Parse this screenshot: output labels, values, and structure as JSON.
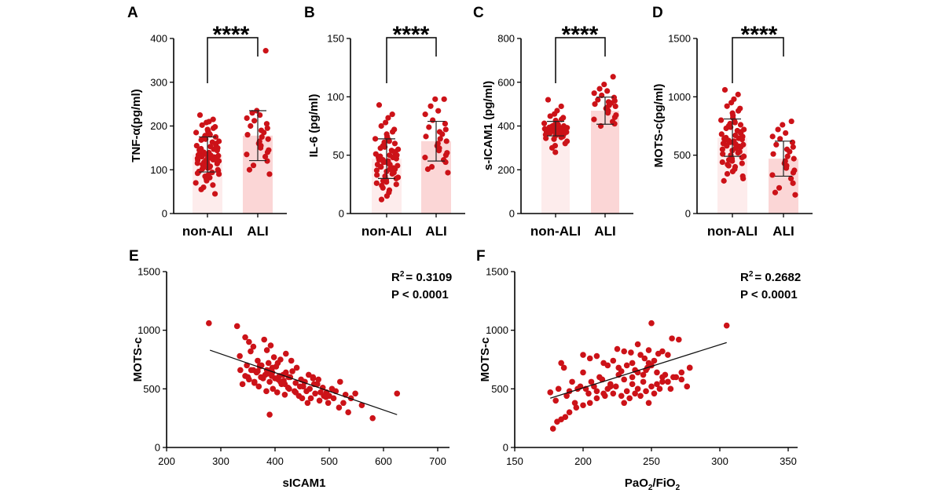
{
  "colors": {
    "point": "#cc1218",
    "bar_non_ali": "#fdecec",
    "bar_ali": "#fbd6d6",
    "axis": "#000000"
  },
  "panels": {
    "A": {
      "letter": "A",
      "ylabel": "TNF-α(pg/ml)",
      "sig": "****"
    },
    "B": {
      "letter": "B",
      "ylabel": "IL-6 (pg/ml)",
      "sig": "****"
    },
    "C": {
      "letter": "C",
      "ylabel": "s-ICAM1 (pg/ml)",
      "sig": "****"
    },
    "D": {
      "letter": "D",
      "ylabel": "MOTS-c(pg/ml)",
      "sig": "****"
    },
    "E": {
      "letter": "E",
      "ylabel": "MOTS-c",
      "xlabel": "sICAM1",
      "r2_label": "R",
      "r2_sup": "2",
      "r2_value": "= 0.3109",
      "p_text": "P < 0.0001"
    },
    "F": {
      "letter": "F",
      "ylabel": "MOTS-c",
      "xlabel_main": "PaO",
      "xlabel_sub1": "2",
      "xlabel_mid": "/FiO",
      "xlabel_sub2": "2",
      "r2_label": "R",
      "r2_sup": "2",
      "r2_value": "= 0.2682",
      "p_text": "P < 0.0001"
    }
  },
  "chart_data": [
    {
      "panel": "A",
      "type": "bar",
      "categories": [
        "non-ALI",
        "ALI"
      ],
      "ylabel": "TNF-α(pg/ml)",
      "ylim": [
        0,
        400
      ],
      "yticks": [
        0,
        100,
        200,
        300,
        400
      ],
      "significance": "****",
      "series": [
        {
          "category": "non-ALI",
          "mean": 135,
          "sd": 40,
          "points": [
            225,
            215,
            210,
            208,
            202,
            198,
            195,
            192,
            190,
            188,
            185,
            182,
            180,
            178,
            175,
            172,
            170,
            168,
            165,
            163,
            160,
            158,
            155,
            153,
            150,
            148,
            147,
            145,
            144,
            142,
            140,
            139,
            138,
            136,
            135,
            134,
            133,
            132,
            131,
            130,
            129,
            128,
            127,
            126,
            125,
            124,
            123,
            122,
            121,
            120,
            119,
            118,
            117,
            116,
            115,
            114,
            112,
            110,
            108,
            106,
            104,
            102,
            100,
            98,
            96,
            94,
            92,
            90,
            88,
            85,
            82,
            80,
            75,
            70,
            65,
            60,
            55,
            45
          ]
        },
        {
          "category": "ALI",
          "mean": 178,
          "sd": 57,
          "points": [
            372,
            235,
            230,
            225,
            218,
            212,
            205,
            200,
            195,
            190,
            185,
            180,
            175,
            170,
            165,
            160,
            155,
            150,
            145,
            140,
            135,
            130,
            120,
            110,
            100,
            90
          ]
        }
      ]
    },
    {
      "panel": "B",
      "type": "bar",
      "categories": [
        "non-ALI",
        "ALI"
      ],
      "ylabel": "IL-6 (pg/ml)",
      "ylim": [
        0,
        150
      ],
      "yticks": [
        0,
        50,
        100,
        150
      ],
      "significance": "****",
      "series": [
        {
          "category": "non-ALI",
          "mean": 47,
          "sd": 17,
          "points": [
            93,
            85,
            82,
            78,
            75,
            72,
            70,
            68,
            66,
            65,
            64,
            63,
            62,
            61,
            60,
            58,
            57,
            56,
            55,
            54,
            53,
            52,
            51,
            50,
            50,
            49,
            48,
            48,
            47,
            46,
            46,
            45,
            44,
            44,
            43,
            42,
            42,
            41,
            40,
            40,
            39,
            38,
            38,
            37,
            36,
            35,
            34,
            33,
            32,
            31,
            30,
            29,
            28,
            27,
            26,
            25,
            24,
            22,
            20,
            18,
            15,
            12
          ]
        },
        {
          "category": "ALI",
          "mean": 62,
          "sd": 17,
          "points": [
            98,
            98,
            92,
            88,
            85,
            80,
            77,
            74,
            72,
            70,
            68,
            66,
            64,
            62,
            60,
            58,
            56,
            54,
            52,
            50,
            48,
            46,
            44,
            40,
            38,
            35
          ]
        }
      ]
    },
    {
      "panel": "C",
      "type": "bar",
      "categories": [
        "non-ALI",
        "ALI"
      ],
      "ylabel": "s-ICAM1 (pg/ml)",
      "ylim": [
        0,
        800
      ],
      "yticks": [
        0,
        200,
        400,
        600,
        800
      ],
      "significance": "****",
      "series": [
        {
          "category": "non-ALI",
          "mean": 388,
          "sd": 33,
          "points": [
            520,
            490,
            470,
            455,
            445,
            438,
            430,
            425,
            420,
            415,
            412,
            408,
            405,
            402,
            400,
            398,
            396,
            394,
            392,
            390,
            389,
            388,
            387,
            386,
            385,
            384,
            383,
            382,
            381,
            380,
            379,
            378,
            377,
            376,
            375,
            374,
            373,
            372,
            370,
            368,
            366,
            364,
            362,
            360,
            356,
            352,
            348,
            344,
            340,
            330,
            320,
            310,
            300,
            280
          ]
        },
        {
          "category": "ALI",
          "mean": 470,
          "sd": 62,
          "points": [
            625,
            590,
            570,
            560,
            550,
            540,
            530,
            520,
            515,
            510,
            505,
            500,
            495,
            490,
            485,
            480,
            470,
            460,
            450,
            440,
            430,
            420,
            410,
            400
          ]
        }
      ]
    },
    {
      "panel": "D",
      "type": "bar",
      "categories": [
        "non-ALI",
        "ALI"
      ],
      "ylabel": "MOTS-c(pg/ml)",
      "ylim": [
        0,
        1500
      ],
      "yticks": [
        0,
        500,
        1000,
        1500
      ],
      "significance": "****",
      "series": [
        {
          "category": "non-ALI",
          "mean": 650,
          "sd": 160,
          "points": [
            1060,
            1020,
            980,
            950,
            920,
            900,
            880,
            860,
            840,
            820,
            800,
            790,
            780,
            770,
            760,
            750,
            740,
            730,
            720,
            710,
            700,
            690,
            680,
            670,
            660,
            650,
            645,
            640,
            635,
            630,
            625,
            620,
            615,
            610,
            605,
            600,
            595,
            590,
            585,
            580,
            575,
            570,
            560,
            550,
            540,
            530,
            520,
            510,
            500,
            490,
            480,
            470,
            460,
            450,
            440,
            430,
            420,
            410,
            400,
            380,
            360,
            340,
            320,
            300,
            280
          ]
        },
        {
          "category": "ALI",
          "mean": 470,
          "sd": 150,
          "points": [
            790,
            760,
            720,
            690,
            660,
            640,
            610,
            590,
            570,
            550,
            530,
            510,
            490,
            470,
            450,
            430,
            410,
            390,
            370,
            350,
            330,
            300,
            260,
            220,
            180,
            160
          ]
        }
      ]
    },
    {
      "panel": "E",
      "type": "scatter",
      "xlabel": "sICAM1",
      "ylabel": "MOTS-c",
      "xlim": [
        200,
        750
      ],
      "ylim": [
        0,
        1500
      ],
      "xticks": [
        200,
        300,
        400,
        500,
        600,
        700
      ],
      "yticks": [
        0,
        500,
        1000,
        1500
      ],
      "r2": "R2 = 0.3109",
      "p": "P < 0.0001",
      "fit_line": {
        "x": [
          280,
          625
        ],
        "y": [
          830,
          280
        ]
      },
      "x": [
        278,
        330,
        345,
        352,
        360,
        335,
        380,
        392,
        355,
        368,
        375,
        410,
        420,
        385,
        398,
        405,
        430,
        440,
        360,
        372,
        388,
        395,
        402,
        415,
        425,
        432,
        448,
        455,
        462,
        470,
        478,
        488,
        495,
        505,
        512,
        520,
        530,
        540,
        548,
        560,
        580,
        625,
        340,
        350,
        362,
        370,
        378,
        384,
        390,
        396,
        404,
        412,
        418,
        424,
        436,
        444,
        452,
        458,
        466,
        474,
        482,
        490,
        498,
        508,
        518,
        526,
        535,
        345,
        352,
        366,
        374,
        386,
        392,
        400,
        408,
        416,
        428,
        438,
        446,
        454,
        464,
        472,
        484,
        494,
        500,
        480,
        470,
        420,
        410,
        395,
        385,
        372,
        362,
        336,
        348,
        356,
        368,
        382,
        394,
        406,
        418,
        426,
        438,
        450,
        460,
        390
      ],
      "y": [
        1060,
        1035,
        940,
        900,
        860,
        780,
        920,
        870,
        820,
        740,
        700,
        750,
        800,
        830,
        770,
        720,
        740,
        680,
        660,
        690,
        720,
        640,
        690,
        620,
        600,
        650,
        580,
        560,
        620,
        590,
        540,
        510,
        470,
        500,
        480,
        560,
        450,
        420,
        460,
        360,
        250,
        460,
        540,
        600,
        550,
        520,
        590,
        480,
        560,
        500,
        470,
        540,
        450,
        510,
        480,
        440,
        520,
        480,
        420,
        460,
        400,
        440,
        380,
        420,
        340,
        380,
        300,
        610,
        580,
        640,
        600,
        630,
        660,
        590,
        610,
        570,
        600,
        550,
        520,
        560,
        500,
        540,
        470,
        430,
        440,
        580,
        600,
        640,
        560,
        680,
        660,
        700,
        560,
        660,
        700,
        660,
        650,
        620,
        610,
        580,
        540,
        500,
        470,
        420,
        380,
        280
      ]
    },
    {
      "panel": "F",
      "type": "scatter",
      "xlabel": "PaO2/FiO2",
      "ylabel": "MOTS-c",
      "xlim": [
        150,
        375
      ],
      "ylim": [
        0,
        1500
      ],
      "xticks": [
        150,
        200,
        250,
        300,
        350
      ],
      "yticks": [
        0,
        500,
        1000,
        1500
      ],
      "r2": "R2 = 0.2682",
      "p": "P < 0.0001",
      "fit_line": {
        "x": [
          176,
          305
        ],
        "y": [
          420,
          895
        ]
      },
      "x": [
        305,
        250,
        265,
        270,
        240,
        248,
        255,
        258,
        262,
        225,
        230,
        235,
        242,
        245,
        252,
        200,
        205,
        210,
        215,
        218,
        222,
        226,
        228,
        232,
        236,
        238,
        244,
        247,
        254,
        258,
        262,
        266,
        272,
        278,
        176,
        178,
        180,
        182,
        184,
        186,
        188,
        190,
        192,
        194,
        196,
        198,
        200,
        202,
        204,
        206,
        208,
        210,
        212,
        214,
        216,
        218,
        220,
        222,
        224,
        226,
        228,
        230,
        232,
        234,
        236,
        238,
        240,
        242,
        244,
        246,
        248,
        250,
        252,
        254,
        256,
        258,
        260,
        262,
        264,
        268,
        272,
        276,
        278,
        250,
        248,
        246,
        240,
        236,
        230,
        220,
        215,
        210,
        205,
        200,
        195,
        190,
        187,
        184,
        181
      ],
      "y": [
        1040,
        1060,
        930,
        920,
        880,
        830,
        800,
        820,
        790,
        840,
        820,
        810,
        790,
        760,
        740,
        790,
        760,
        780,
        720,
        700,
        740,
        680,
        650,
        700,
        720,
        660,
        620,
        680,
        640,
        600,
        560,
        600,
        580,
        680,
        470,
        160,
        400,
        500,
        720,
        680,
        440,
        480,
        560,
        380,
        500,
        520,
        640,
        500,
        460,
        560,
        520,
        480,
        600,
        580,
        440,
        500,
        540,
        460,
        520,
        620,
        440,
        380,
        480,
        420,
        540,
        460,
        500,
        440,
        560,
        480,
        380,
        520,
        460,
        540,
        500,
        560,
        620,
        560,
        500,
        600,
        640,
        520,
        680,
        700,
        720,
        660,
        640,
        600,
        580,
        520,
        460,
        420,
        380,
        360,
        340,
        300,
        260,
        240,
        220
      ]
    }
  ]
}
